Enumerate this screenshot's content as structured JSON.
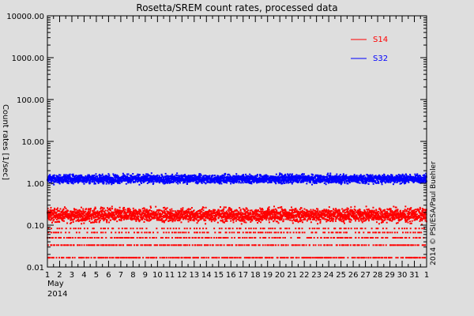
{
  "chart_data": {
    "type": "scatter",
    "title": "Rosetta/SREM count rates, processed data",
    "ylabel": "Count rates [1/sec]",
    "xlabel": "",
    "y_scale": "log",
    "ylim": [
      0.01,
      10000
    ],
    "y_ticks": [
      "0.01",
      "0.10",
      "1.00",
      "10.00",
      "100.00",
      "1000.00",
      "10000.00"
    ],
    "xlim": [
      "2014-05-01",
      "2014-06-01"
    ],
    "x_ticks": [
      "1",
      "2",
      "3",
      "4",
      "5",
      "6",
      "7",
      "8",
      "9",
      "10",
      "11",
      "12",
      "13",
      "14",
      "15",
      "16",
      "17",
      "18",
      "19",
      "20",
      "21",
      "22",
      "23",
      "24",
      "25",
      "26",
      "27",
      "28",
      "29",
      "30",
      "31",
      "1"
    ],
    "x_sublabel_month": "May",
    "x_sublabel_year": "2014",
    "grid": false,
    "legend_position": "top-right",
    "series": [
      {
        "name": "S14",
        "color": "#ff0000",
        "x_range": [
          "2014-05-01",
          "2014-06-01"
        ],
        "y_band": [
          0.1,
          0.3
        ],
        "y_occasional": [
          0.015,
          0.08
        ],
        "y_discrete_levels": [
          0.0167,
          0.0333,
          0.05,
          0.0667,
          0.0833
        ]
      },
      {
        "name": "S32",
        "color": "#0000ff",
        "x_range": [
          "2014-05-01",
          "2014-06-01"
        ],
        "y_band": [
          0.9,
          1.8
        ]
      }
    ]
  },
  "credit": "2014 © PSI/ESA/Paul Buehler",
  "colors": {
    "background": "#dedede",
    "axes": "#000000"
  }
}
